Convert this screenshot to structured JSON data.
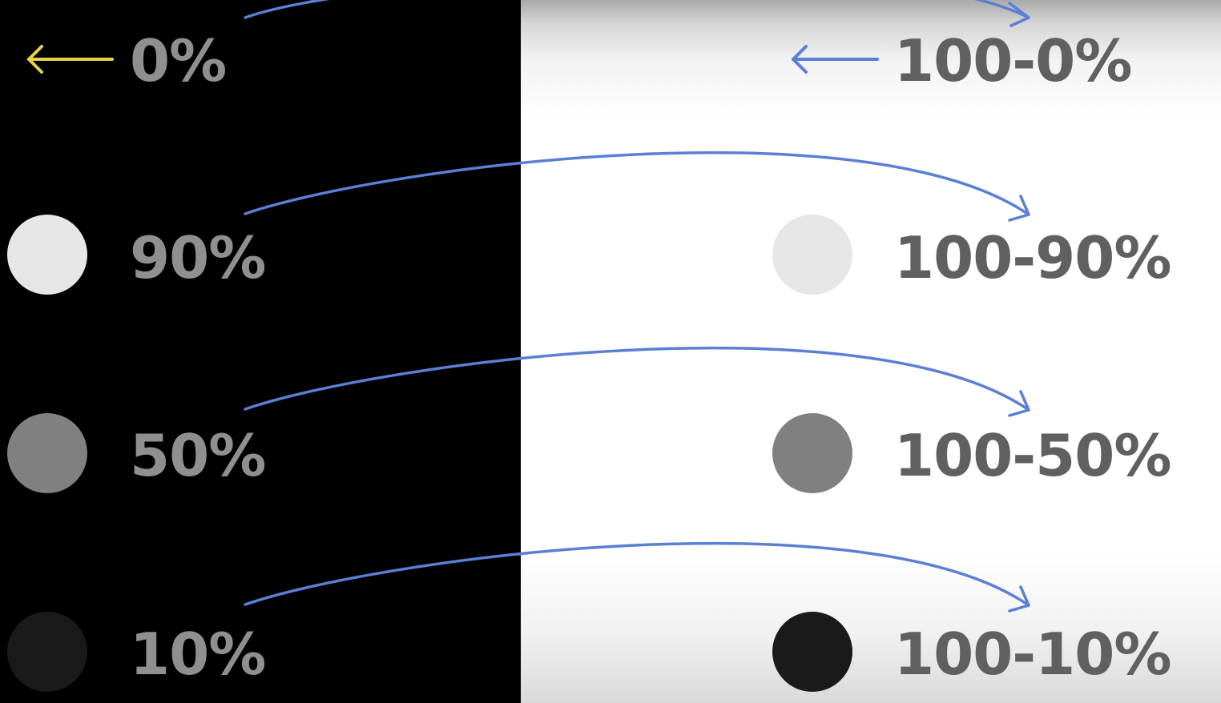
{
  "rows": [
    {
      "left_label": "0%",
      "right_label": "100-0%",
      "left_color": null,
      "right_color": null
    },
    {
      "left_label": "90%",
      "right_label": "100-90%",
      "left_color": "#e6e6e6",
      "right_color": "#e6e6e6"
    },
    {
      "left_label": "50%",
      "right_label": "100-50%",
      "left_color": "#808080",
      "right_color": "#808080"
    },
    {
      "left_label": "10%",
      "right_label": "100-10%",
      "left_color": "#1a1a1a",
      "right_color": "#1a1a1a"
    }
  ],
  "colors": {
    "left_background": "#000000",
    "right_background": "#ffffff",
    "curve_arrow": "#5b7fd4",
    "left_arrow": "#e8d24a",
    "right_arrow": "#5b7fd4"
  },
  "icons": {
    "left_arrow": "arrow-left-icon",
    "right_arrow": "arrow-left-icon",
    "curve": "curved-arrow-right-icon"
  }
}
